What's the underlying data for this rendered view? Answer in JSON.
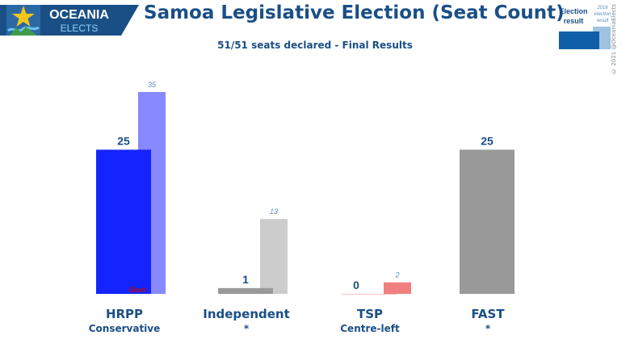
{
  "header": {
    "logo_line1": "OCEANIA",
    "logo_line2": "ELECTS",
    "title": "Samoa Legislative Election (Seat Count)",
    "subtitle": "51/51 seats declared - Final Results"
  },
  "legend": {
    "current_line1": "Election",
    "current_line2": "result",
    "previous_line1": "2016",
    "previous_line2": "election",
    "previous_line3": "result",
    "current_color": "#0f5fa8",
    "previous_color": "#9ec2e0"
  },
  "copyright": "© 2021 @OceaniaElects",
  "chart_data": {
    "type": "bar",
    "title": "Samoa Legislative Election (Seat Count)",
    "subtitle": "51/51 seats declared - Final Results",
    "categories": [
      "HRPP",
      "Independent",
      "TSP",
      "FAST"
    ],
    "category_sublabels": [
      "Conservative",
      "*",
      "Centre-left",
      "*"
    ],
    "series": [
      {
        "name": "Election result",
        "values": [
          25,
          1,
          0,
          25
        ]
      },
      {
        "name": "2016 election result",
        "values": [
          35,
          13,
          2,
          null
        ]
      }
    ],
    "colors_current": [
      "#1424ff",
      "#999999",
      "#f08080",
      "#999999"
    ],
    "colors_previous": [
      "#8888ff",
      "#cccccc",
      "#f08080",
      null
    ],
    "annotations": [
      {
        "category": "HRPP",
        "text": "Govt",
        "color": "#cc0000"
      }
    ],
    "ylim": [
      0,
      35
    ],
    "grid": false,
    "legend_position": "top-right"
  }
}
